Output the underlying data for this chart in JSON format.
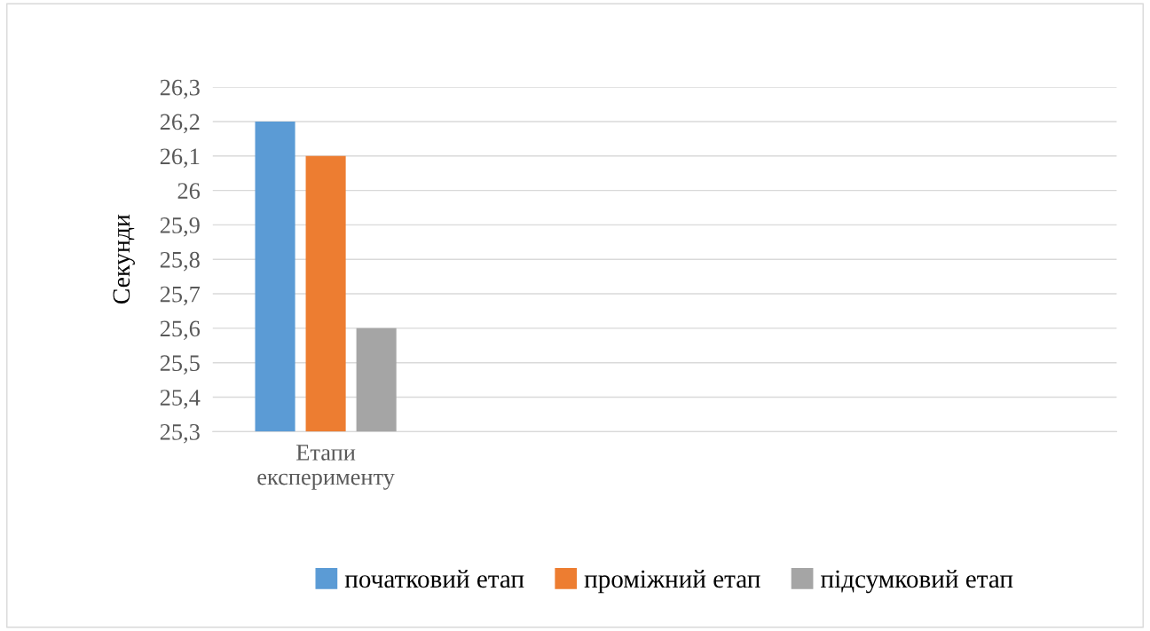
{
  "chart_data": {
    "type": "bar",
    "ylabel": "Секунди",
    "categories": [
      "Етапи\nексперименту",
      null,
      null,
      null
    ],
    "series": [
      {
        "name": "початковий етап",
        "color": "#5b9bd5",
        "values": [
          26.2,
          null,
          null,
          null
        ]
      },
      {
        "name": "проміжний етап",
        "color": "#ed7d31",
        "values": [
          26.1,
          null,
          null,
          null
        ]
      },
      {
        "name": "підсумковий етап",
        "color": "#a5a5a5",
        "values": [
          25.6,
          null,
          null,
          null
        ]
      }
    ],
    "ylim": [
      25.3,
      26.3
    ],
    "yticks": [
      {
        "value": 25.3,
        "label": "25,3"
      },
      {
        "value": 25.4,
        "label": "25,4"
      },
      {
        "value": 25.5,
        "label": "25,5"
      },
      {
        "value": 25.6,
        "label": "25,6"
      },
      {
        "value": 25.7,
        "label": "25,7"
      },
      {
        "value": 25.8,
        "label": "25,8"
      },
      {
        "value": 25.9,
        "label": "25,9"
      },
      {
        "value": 26,
        "label": "26"
      },
      {
        "value": 26.1,
        "label": "26,1"
      },
      {
        "value": 26.2,
        "label": "26,2"
      },
      {
        "value": 26.3,
        "label": "26,3"
      }
    ],
    "grid": "y",
    "legend": "bottom"
  }
}
